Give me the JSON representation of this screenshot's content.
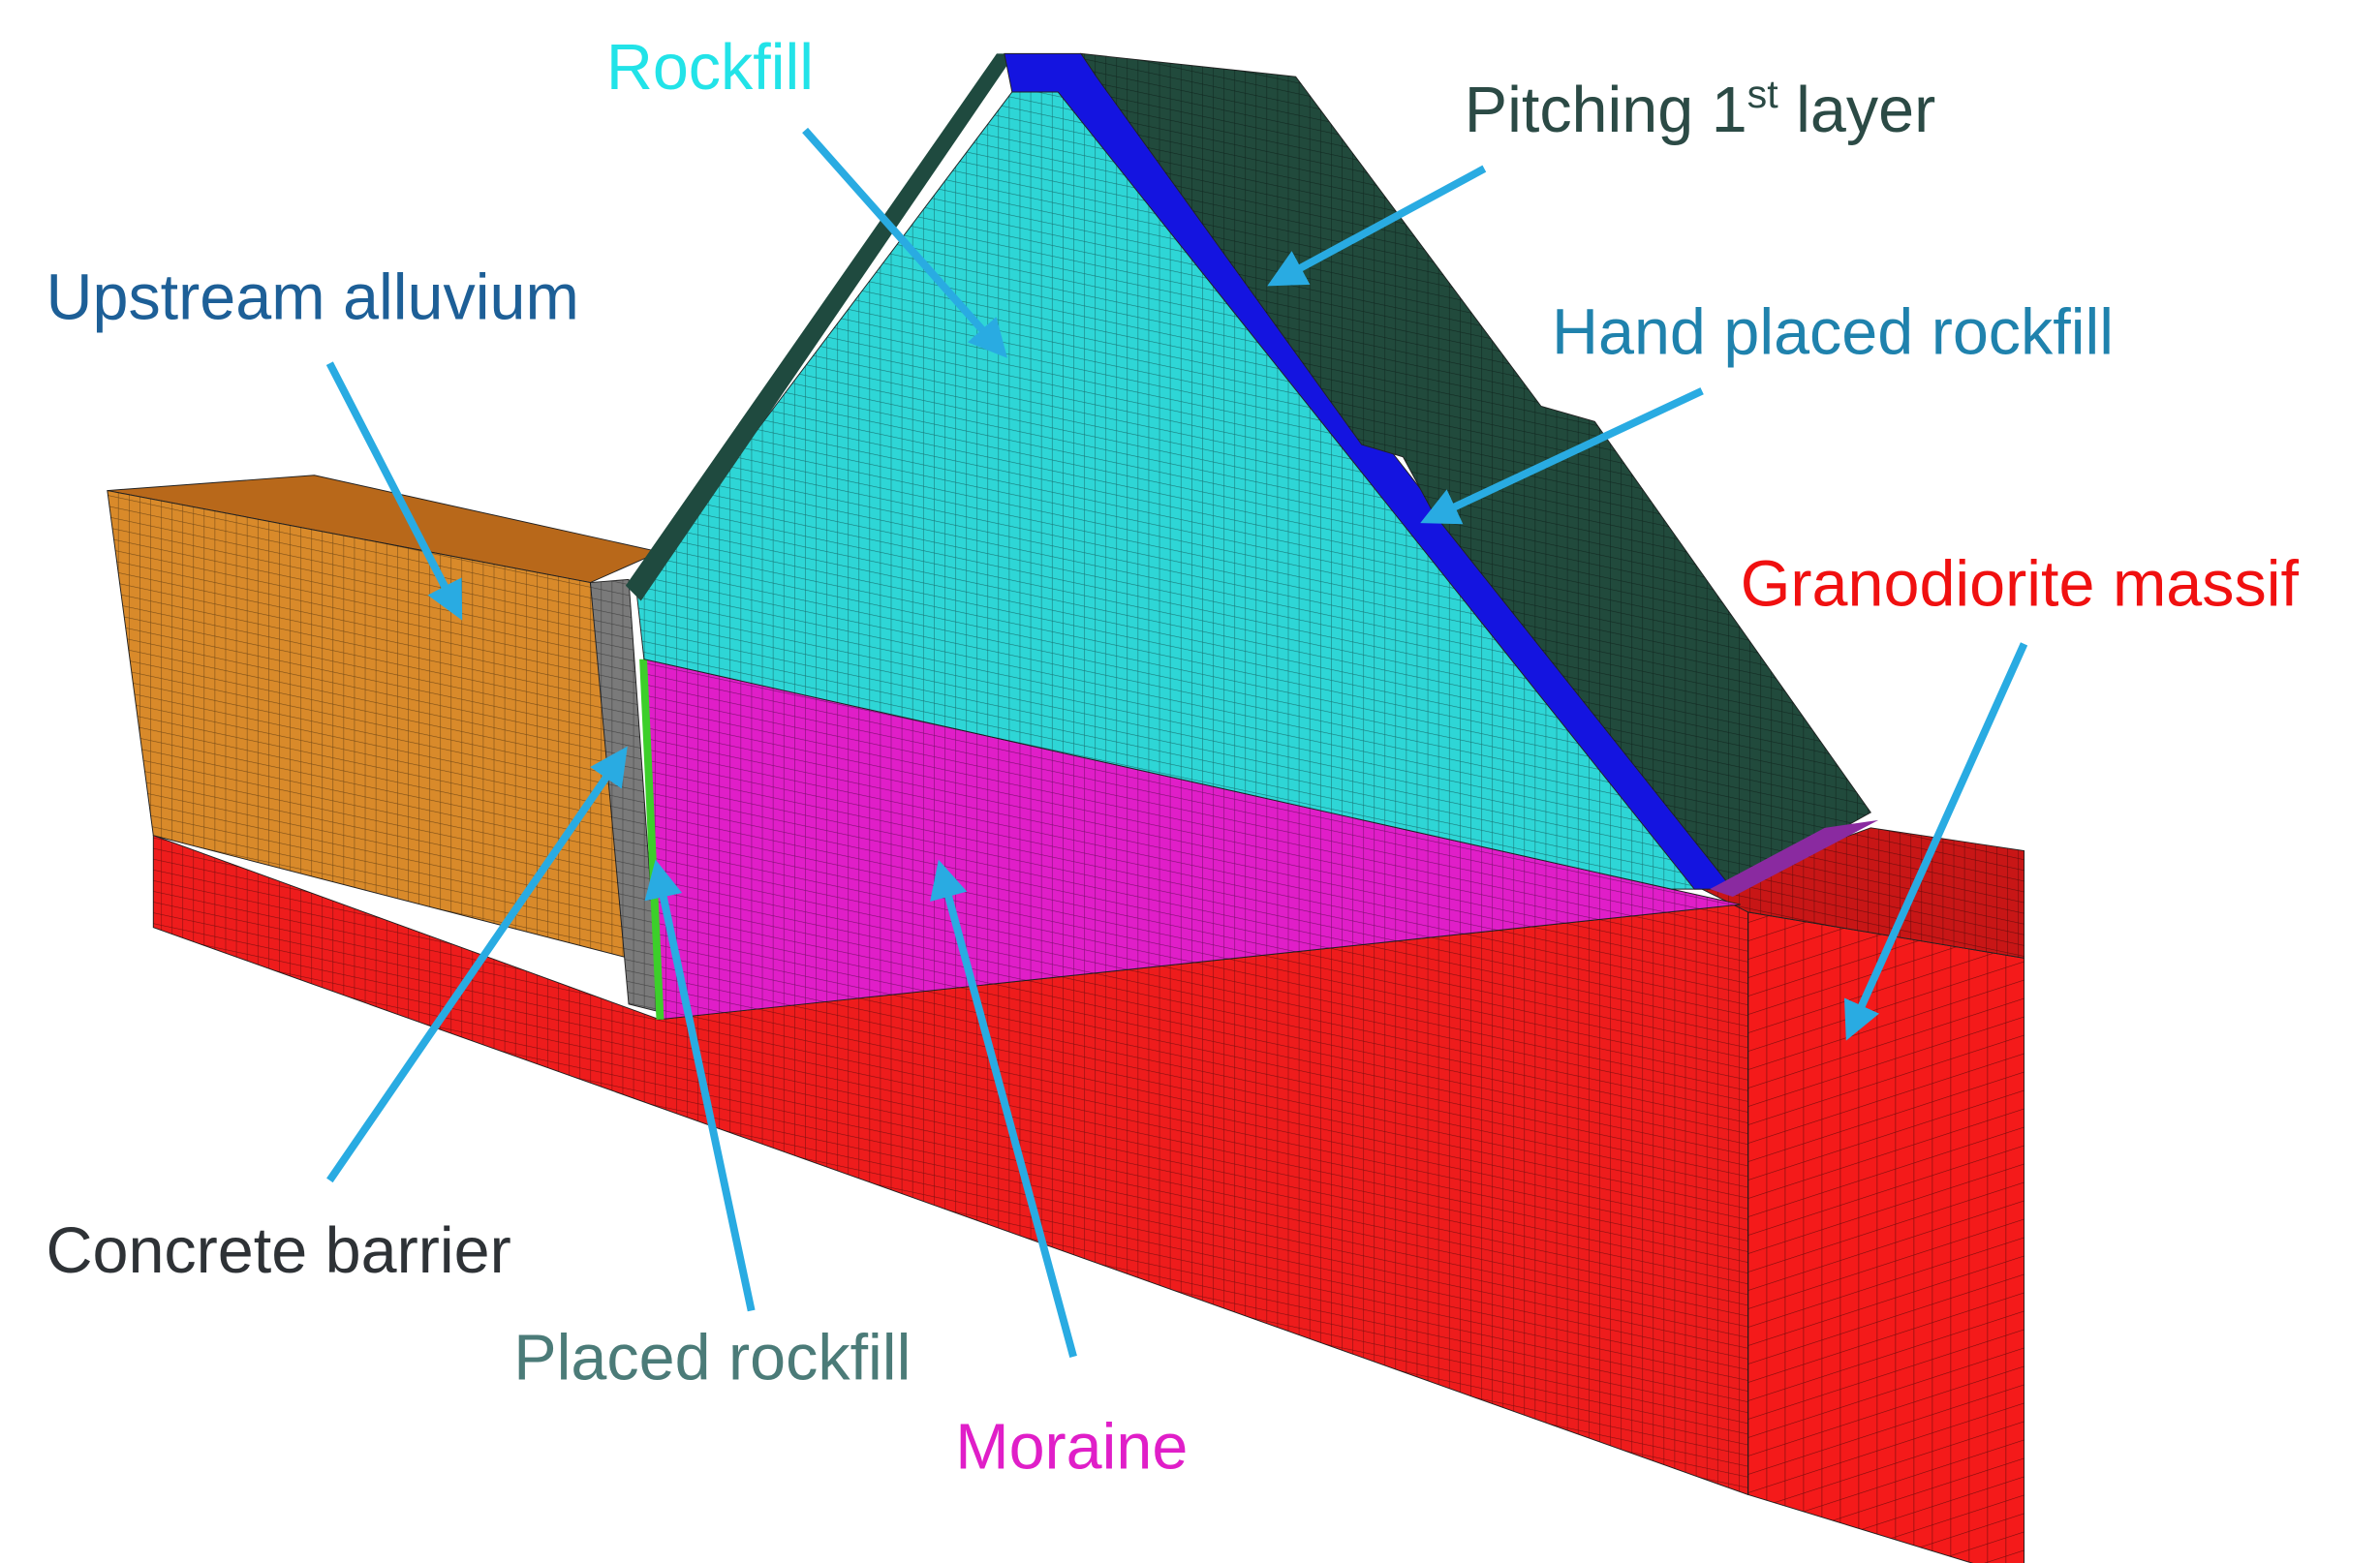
{
  "labels": [
    {
      "text": "Rockfill",
      "color": "#22e3e8"
    },
    {
      "parts": [
        "Pitching 1",
        "st",
        " layer"
      ],
      "color": "#2b4a45"
    },
    {
      "text": "Upstream alluvium",
      "color": "#1d5f97"
    },
    {
      "text": "Hand placed rockfill",
      "color": "#1f82ad"
    },
    {
      "text": "Granodiorite massif",
      "color": "#f01010"
    },
    {
      "text": "Concrete barrier",
      "color": "#2e3236"
    },
    {
      "text": "Placed rockfill",
      "color": "#4b7b78"
    },
    {
      "text": "Moraine",
      "color": "#e01ec8"
    }
  ]
}
